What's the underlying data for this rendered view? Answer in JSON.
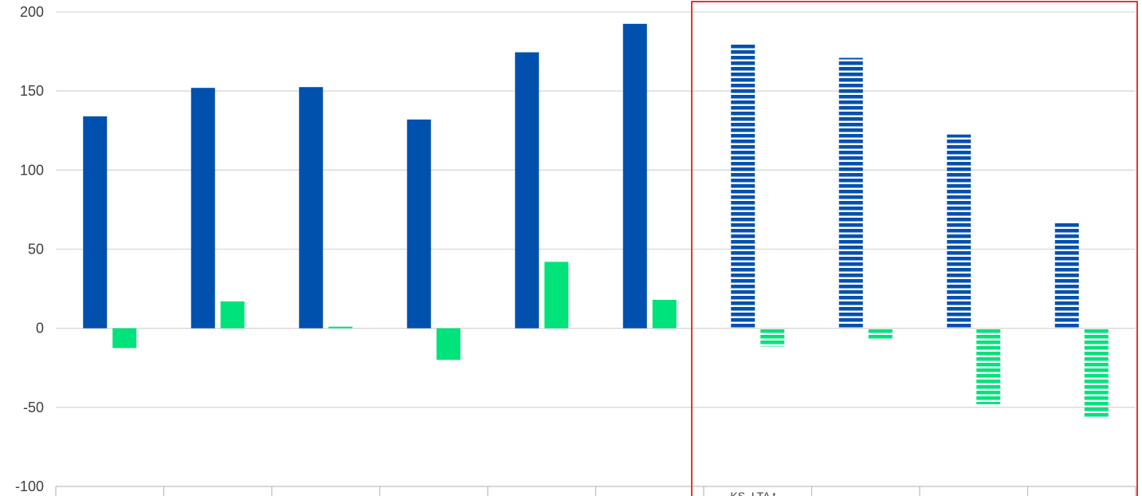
{
  "chart_data": {
    "type": "bar",
    "title": "",
    "xlabel": "",
    "ylabel": "",
    "ylim": [
      -100,
      200
    ],
    "yticks": [
      -100,
      -50,
      0,
      50,
      100,
      150,
      200
    ],
    "grid": true,
    "legend": "none",
    "categories": [
      "",
      "",
      "",
      "",
      "",
      "",
      "KS, LTA t...",
      "",
      "",
      ""
    ],
    "series": [
      {
        "color": "#0050AE",
        "values": [
          134,
          152,
          152.5,
          132,
          174.5,
          192.5,
          180,
          171,
          122.5,
          66.5
        ]
      },
      {
        "color": "#00E27A",
        "values": [
          -12.5,
          17,
          1,
          -20,
          42,
          18,
          -11.5,
          -7.5,
          -48,
          -56
        ]
      }
    ],
    "hatched_from_index": 6,
    "highlight_box": {
      "from_index": 6,
      "to_index": 9,
      "color": "#E02020"
    }
  }
}
